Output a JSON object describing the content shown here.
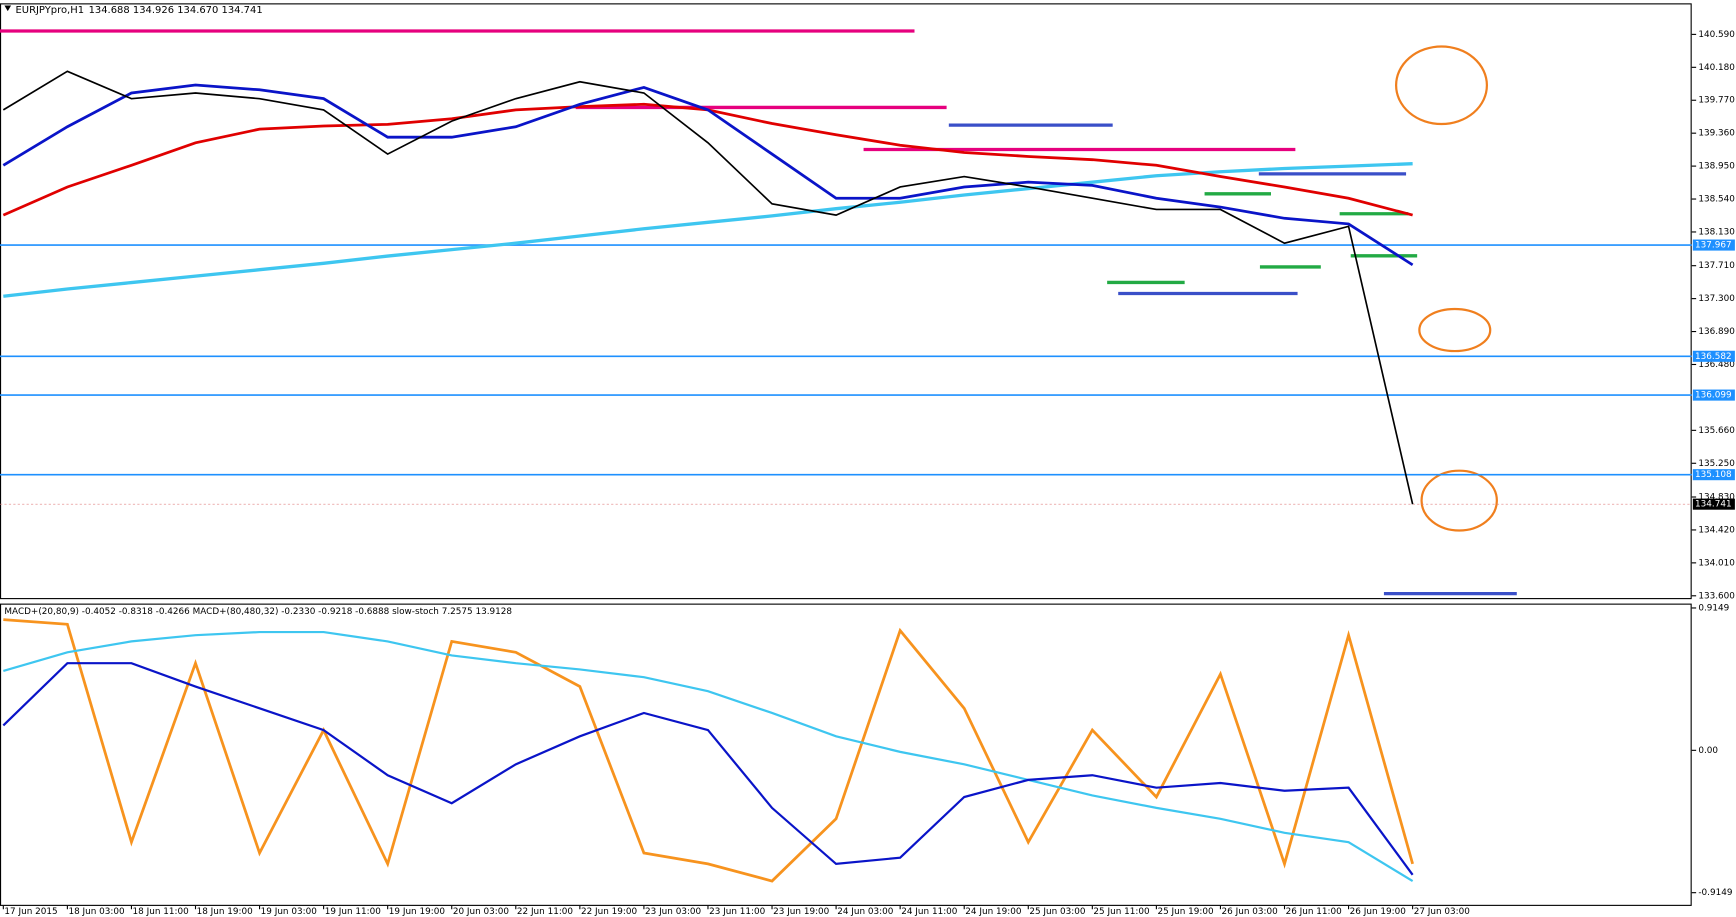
{
  "chart_data": [
    {
      "type": "line",
      "title": "EURJPYpro,H1",
      "subtitle": "134.688 134.926 134.670 134.741",
      "ylim": [
        133.572,
        140.963
      ],
      "yticks": [
        {
          "value": 140.59,
          "label": "140.590"
        },
        {
          "value": 140.18,
          "label": "140.180"
        },
        {
          "value": 139.77,
          "label": "139.770"
        },
        {
          "value": 139.36,
          "label": "139.360"
        },
        {
          "value": 138.95,
          "label": "138.950"
        },
        {
          "value": 138.54,
          "label": "138.540"
        },
        {
          "value": 138.13,
          "label": "138.130"
        },
        {
          "value": 137.71,
          "label": "137.710"
        },
        {
          "value": 137.3,
          "label": "137.300"
        },
        {
          "value": 136.89,
          "label": "136.890"
        },
        {
          "value": 136.48,
          "label": "136.480"
        },
        {
          "value": 135.66,
          "label": "135.660"
        },
        {
          "value": 135.25,
          "label": "135.250"
        },
        {
          "value": 134.83,
          "label": "134.830"
        },
        {
          "value": 134.42,
          "label": "134.420"
        },
        {
          "value": 134.01,
          "label": "134.010"
        },
        {
          "value": 133.6,
          "label": "133.600"
        }
      ],
      "levels": [
        {
          "value": 137.967,
          "label": "137.967",
          "color": "#1e90ff"
        },
        {
          "value": 136.582,
          "label": "136.582",
          "color": "#1e90ff"
        },
        {
          "value": 136.099,
          "label": "136.099",
          "color": "#1e90ff"
        },
        {
          "value": 135.108,
          "label": "135.108",
          "color": "#1e90ff"
        },
        {
          "value": 134.741,
          "label": "134.741",
          "color": "#000000"
        }
      ],
      "series": [
        {
          "color": "#3ec6f0",
          "width": 3,
          "values": [
            137.33,
            137.42,
            137.5,
            137.58,
            137.66,
            137.74,
            137.83,
            137.91,
            137.99,
            138.08,
            138.17,
            138.25,
            138.33,
            138.42,
            138.5,
            138.59,
            138.67,
            138.75,
            138.83,
            138.88,
            138.92,
            138.95,
            138.98
          ]
        },
        {
          "color": "#e00000",
          "width": 2.5,
          "values": [
            138.34,
            138.69,
            138.96,
            139.24,
            139.41,
            139.45,
            139.47,
            139.54,
            139.65,
            139.69,
            139.72,
            139.65,
            139.48,
            139.34,
            139.21,
            139.12,
            139.07,
            139.03,
            138.96,
            138.82,
            138.69,
            138.55,
            138.34
          ]
        },
        {
          "color": "#0a14c8",
          "width": 2.5,
          "values": [
            138.96,
            139.44,
            139.86,
            139.96,
            139.9,
            139.79,
            139.31,
            139.31,
            139.44,
            139.72,
            139.93,
            139.65,
            139.1,
            138.55,
            138.55,
            138.69,
            138.75,
            138.71,
            138.55,
            138.44,
            138.3,
            138.23,
            137.72
          ]
        },
        {
          "color": "#000000",
          "width": 1.5,
          "values": [
            139.65,
            140.13,
            139.79,
            139.86,
            139.79,
            139.65,
            139.1,
            139.51,
            139.79,
            140.0,
            139.86,
            139.24,
            138.48,
            138.34,
            138.69,
            138.82,
            138.69,
            138.55,
            138.41,
            138.41,
            137.99,
            138.2,
            134.74
          ]
        }
      ]
    },
    {
      "type": "line",
      "title": "MACD+(20,80,9) -0.4052 -0.8318 -0.4266  MACD+(80,480,32) -0.2330 -0.9218 -0.6888  slow-stoch 7.2575 13.9128",
      "categories": [
        "17 Jun 2015",
        "18 Jun 03:00",
        "18 Jun 11:00",
        "18 Jun 19:00",
        "19 Jun 03:00",
        "19 Jun 11:00",
        "19 Jun 19:00",
        "20 Jun 03:00",
        "22 Jun 11:00",
        "22 Jun 19:00",
        "23 Jun 03:00",
        "23 Jun 11:00",
        "23 Jun 19:00",
        "24 Jun 03:00",
        "24 Jun 11:00",
        "24 Jun 19:00",
        "25 Jun 03:00",
        "25 Jun 11:00",
        "25 Jun 19:00",
        "26 Jun 03:00",
        "26 Jun 11:00",
        "26 Jun 19:00",
        "27 Jun 03:00"
      ],
      "ylim": [
        -1.0,
        0.936
      ],
      "yticks": [
        0.9149,
        {
          "value": 0,
          "label": "0.00"
        },
        -0.9149
      ],
      "series": [
        {
          "color": "#f7931e",
          "width": 2.5,
          "values": [
            0.84,
            0.81,
            -0.59,
            0.56,
            -0.66,
            0.13,
            -0.73,
            0.7,
            0.63,
            0.41,
            -0.66,
            -0.73,
            -0.84,
            -0.44,
            0.77,
            0.27,
            -0.59,
            0.13,
            -0.3,
            0.49,
            -0.73,
            0.74,
            -0.73
          ]
        },
        {
          "color": "#3ec6f0",
          "width": 2,
          "values": [
            0.51,
            0.63,
            0.7,
            0.74,
            0.76,
            0.76,
            0.7,
            0.61,
            0.56,
            0.52,
            0.47,
            0.38,
            0.24,
            0.09,
            -0.01,
            -0.09,
            -0.19,
            -0.29,
            -0.37,
            -0.44,
            -0.53,
            -0.59,
            -0.84
          ]
        },
        {
          "color": "#0a14c8",
          "width": 2,
          "values": [
            0.16,
            0.56,
            0.56,
            0.41,
            0.27,
            0.13,
            -0.16,
            -0.34,
            -0.09,
            0.09,
            0.24,
            0.13,
            -0.37,
            -0.73,
            -0.69,
            -0.3,
            -0.19,
            -0.16,
            -0.24,
            -0.21,
            -0.26,
            -0.24,
            -0.8
          ]
        }
      ]
    }
  ]
}
